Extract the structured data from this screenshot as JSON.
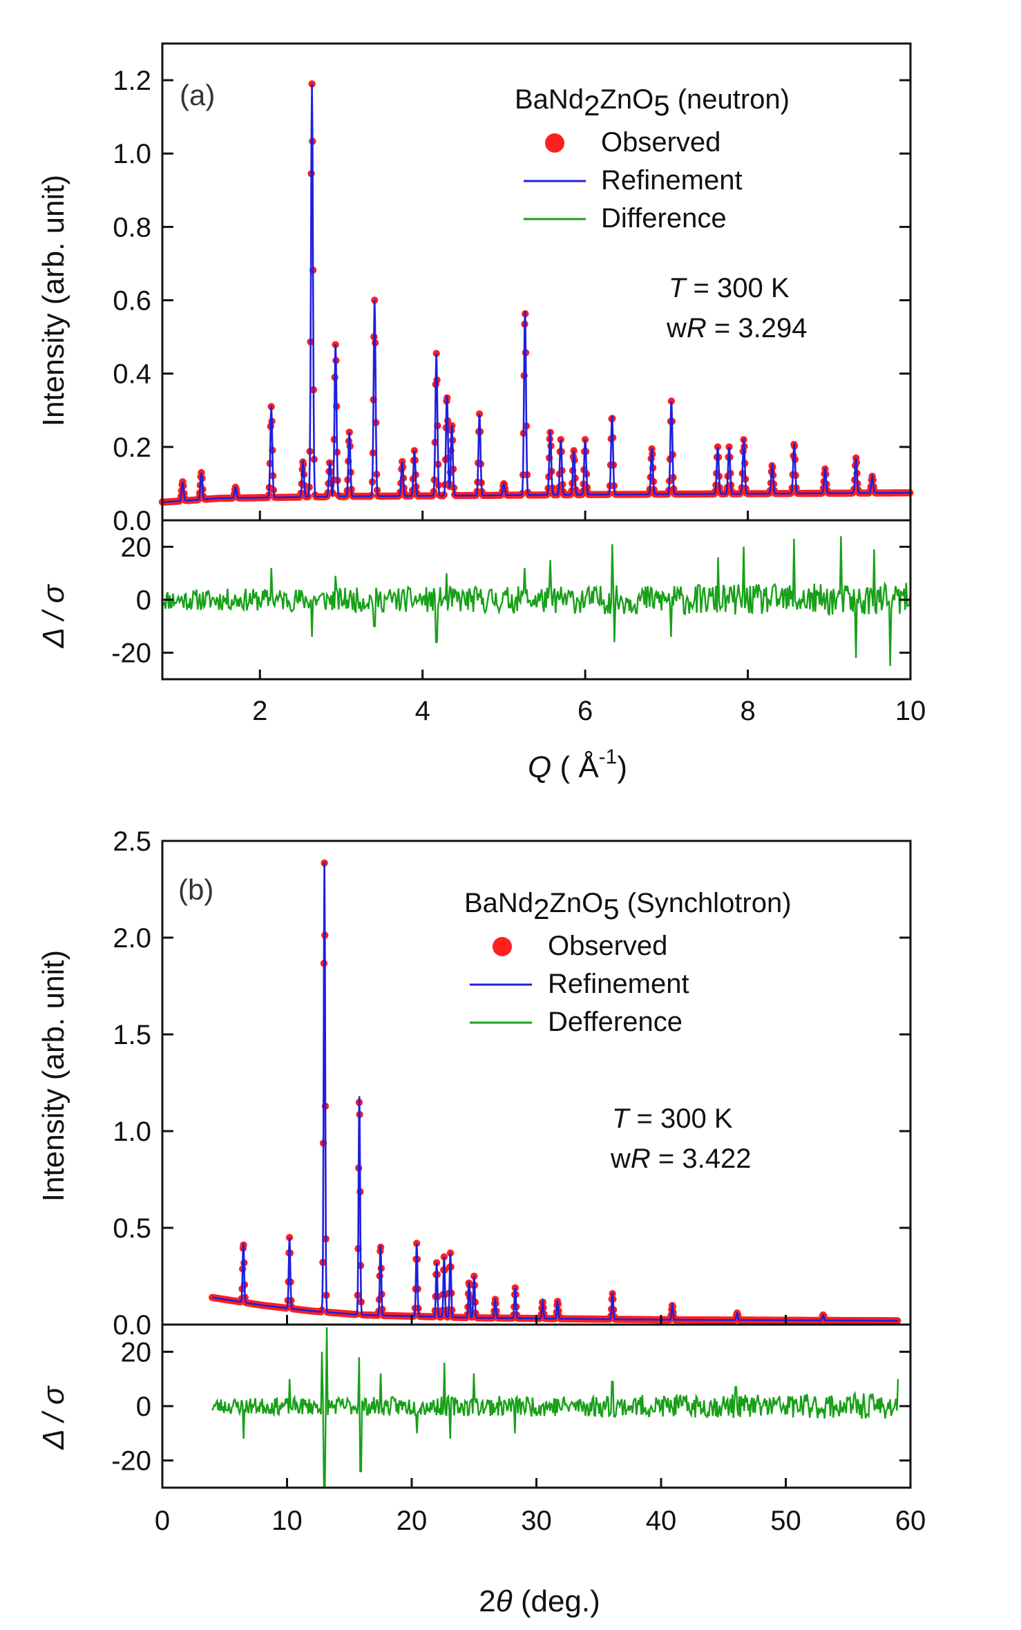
{
  "colors": {
    "observed": "#ff1f1f",
    "refinement": "#1f1fdd",
    "difference": "#18a018",
    "axis": "#111111"
  },
  "chart_data": [
    {
      "type": "line",
      "panel_label": "(a)",
      "xlabel": {
        "italic": "Q",
        "pre": " ( Å",
        "sup": "-1",
        "post": ")"
      },
      "ylabel": "Intensity (arb. unit)",
      "diff_ylabel": "Δ / σ",
      "x_range": [
        0.8,
        10.0
      ],
      "ylim": [
        0.0,
        1.3
      ],
      "diff_ylim": [
        -30,
        30
      ],
      "x_ticks": [
        2,
        4,
        6,
        8,
        10
      ],
      "y_ticks": [
        "0.0",
        "0.2",
        "0.4",
        "0.6",
        "0.8",
        "1.0",
        "1.2"
      ],
      "diff_ticks": [
        "20",
        "0",
        "-20"
      ],
      "legend": {
        "title": {
          "p1": "BaNd",
          "s1": "2",
          "p2": "ZnO",
          "s2": "5",
          "p3": " (neutron)"
        },
        "entries": [
          "Observed",
          "Refinement",
          "Difference"
        ],
        "placement": "top-right"
      },
      "annotation": {
        "t": "T",
        "t_rest": " = 300 K",
        "w": "w",
        "r": "R",
        "r_rest": " = 3.294"
      },
      "background": [
        [
          0.85,
          0.05
        ],
        [
          1.5,
          0.06
        ],
        [
          3.0,
          0.065
        ],
        [
          6.0,
          0.07
        ],
        [
          10.0,
          0.075
        ]
      ],
      "peaks": [
        [
          1.05,
          0.105
        ],
        [
          1.28,
          0.13
        ],
        [
          1.7,
          0.09
        ],
        [
          2.14,
          0.31
        ],
        [
          2.53,
          0.16
        ],
        [
          2.64,
          1.19
        ],
        [
          2.86,
          0.16
        ],
        [
          2.93,
          0.48
        ],
        [
          3.1,
          0.24
        ],
        [
          3.41,
          0.6
        ],
        [
          3.75,
          0.16
        ],
        [
          3.9,
          0.19
        ],
        [
          4.17,
          0.455
        ],
        [
          4.3,
          0.34
        ],
        [
          4.36,
          0.26
        ],
        [
          4.7,
          0.29
        ],
        [
          5.0,
          0.1
        ],
        [
          5.26,
          0.57
        ],
        [
          5.57,
          0.24
        ],
        [
          5.7,
          0.22
        ],
        [
          5.86,
          0.19
        ],
        [
          6.0,
          0.22
        ],
        [
          6.33,
          0.285
        ],
        [
          6.82,
          0.195
        ],
        [
          7.06,
          0.325
        ],
        [
          7.63,
          0.2
        ],
        [
          7.77,
          0.2
        ],
        [
          7.95,
          0.22
        ],
        [
          8.3,
          0.15
        ],
        [
          8.57,
          0.21
        ],
        [
          8.95,
          0.14
        ],
        [
          9.33,
          0.17
        ],
        [
          9.53,
          0.12
        ]
      ],
      "diff_spikes": [
        [
          2.14,
          12
        ],
        [
          2.64,
          -14
        ],
        [
          2.93,
          9
        ],
        [
          3.41,
          -10
        ],
        [
          4.17,
          -16
        ],
        [
          4.3,
          10
        ],
        [
          5.26,
          12
        ],
        [
          5.57,
          15
        ],
        [
          6.33,
          21
        ],
        [
          6.36,
          -16
        ],
        [
          7.06,
          -14
        ],
        [
          7.63,
          16
        ],
        [
          7.95,
          20
        ],
        [
          8.57,
          23
        ],
        [
          9.15,
          24
        ],
        [
          9.33,
          -22
        ],
        [
          9.55,
          19
        ],
        [
          9.75,
          -25
        ]
      ]
    },
    {
      "type": "line",
      "panel_label": "(b)",
      "xlabel": {
        "pre": "2",
        "italic": "θ",
        "post": " (deg.)"
      },
      "ylabel": "Intensity (arb. unit)",
      "diff_ylabel": "Δ / σ",
      "x_range": [
        4.0,
        59.0
      ],
      "ylim": [
        0.0,
        2.5
      ],
      "diff_ylim": [
        -30,
        30
      ],
      "x_ticks": [
        0,
        10,
        20,
        30,
        40,
        50,
        60
      ],
      "y_ticks": [
        "0.0",
        "0.5",
        "1.0",
        "1.5",
        "2.0",
        "2.5"
      ],
      "diff_ticks": [
        "20",
        "0",
        "-20"
      ],
      "legend": {
        "title": {
          "p1": "BaNd",
          "s1": "2",
          "p2": "ZnO",
          "s2": "5",
          "p3": " (Synchlotron)"
        },
        "entries": [
          "Observed",
          "Refinement",
          "Defference"
        ],
        "placement": "top-right"
      },
      "annotation": {
        "t": "T",
        "t_rest": " = 300 K",
        "w": "w",
        "r": "R",
        "r_rest": " = 3.422"
      },
      "background": [
        [
          4.0,
          0.14
        ],
        [
          8.0,
          0.1
        ],
        [
          12.0,
          0.07
        ],
        [
          16.0,
          0.05
        ],
        [
          25.0,
          0.035
        ],
        [
          40.0,
          0.025
        ],
        [
          59.0,
          0.02
        ]
      ],
      "peaks": [
        [
          6.5,
          0.42
        ],
        [
          10.2,
          0.45
        ],
        [
          13.0,
          2.39
        ],
        [
          15.8,
          1.18
        ],
        [
          17.5,
          0.41
        ],
        [
          20.4,
          0.42
        ],
        [
          22.0,
          0.32
        ],
        [
          22.6,
          0.35
        ],
        [
          23.1,
          0.37
        ],
        [
          24.6,
          0.22
        ],
        [
          25.0,
          0.25
        ],
        [
          26.7,
          0.13
        ],
        [
          28.3,
          0.19
        ],
        [
          30.5,
          0.12
        ],
        [
          31.7,
          0.12
        ],
        [
          36.1,
          0.16
        ],
        [
          40.9,
          0.1
        ],
        [
          46.1,
          0.06
        ],
        [
          53.0,
          0.05
        ]
      ],
      "diff_spikes": [
        [
          6.5,
          -12
        ],
        [
          10.2,
          10
        ],
        [
          12.8,
          20
        ],
        [
          13.0,
          -30
        ],
        [
          13.2,
          29
        ],
        [
          15.8,
          18
        ],
        [
          15.9,
          -24
        ],
        [
          17.5,
          12
        ],
        [
          20.4,
          -10
        ],
        [
          22.6,
          16
        ],
        [
          23.1,
          -12
        ],
        [
          25.0,
          12
        ],
        [
          28.3,
          -10
        ],
        [
          36.1,
          9
        ],
        [
          46.0,
          7
        ],
        [
          59.0,
          10
        ]
      ]
    }
  ]
}
